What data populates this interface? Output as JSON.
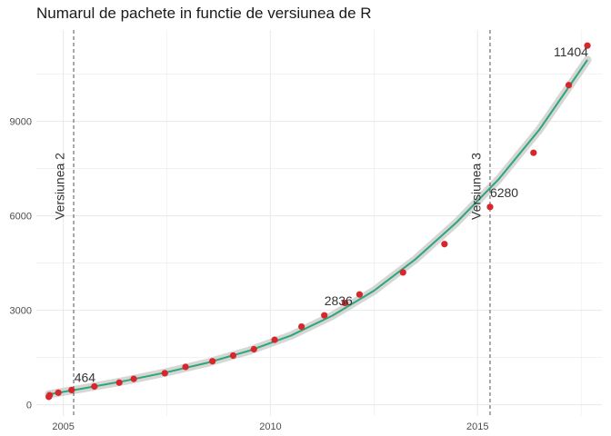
{
  "chart_data": {
    "type": "scatter",
    "title": "Numarul de pachete in functie de versiunea de R",
    "xlabel": "",
    "ylabel": "",
    "xlim": [
      2004.35,
      2018.0
    ],
    "ylim": [
      -360,
      11900
    ],
    "x_ticks": [
      2005,
      2010,
      2015
    ],
    "y_ticks": [
      0,
      3000,
      6000,
      9000
    ],
    "grid": true,
    "points": [
      {
        "x": 2004.65,
        "y": 250
      },
      {
        "x": 2004.67,
        "y": 300
      },
      {
        "x": 2004.88,
        "y": 380
      },
      {
        "x": 2005.2,
        "y": 464
      },
      {
        "x": 2005.75,
        "y": 580
      },
      {
        "x": 2006.35,
        "y": 700
      },
      {
        "x": 2006.7,
        "y": 820
      },
      {
        "x": 2007.45,
        "y": 1000
      },
      {
        "x": 2007.95,
        "y": 1200
      },
      {
        "x": 2008.6,
        "y": 1380
      },
      {
        "x": 2009.1,
        "y": 1560
      },
      {
        "x": 2009.6,
        "y": 1760
      },
      {
        "x": 2010.1,
        "y": 2060
      },
      {
        "x": 2010.75,
        "y": 2480
      },
      {
        "x": 2011.3,
        "y": 2836
      },
      {
        "x": 2011.8,
        "y": 3230
      },
      {
        "x": 2012.15,
        "y": 3500
      },
      {
        "x": 2013.2,
        "y": 4200
      },
      {
        "x": 2014.2,
        "y": 5100
      },
      {
        "x": 2015.3,
        "y": 6280
      },
      {
        "x": 2016.35,
        "y": 8000
      },
      {
        "x": 2017.2,
        "y": 10150
      },
      {
        "x": 2017.65,
        "y": 11404
      }
    ],
    "trend": {
      "x": [
        2004.65,
        2005.5,
        2006.5,
        2007.5,
        2008.5,
        2009.5,
        2010.5,
        2011.5,
        2012.5,
        2013.5,
        2014.5,
        2015.5,
        2016.5,
        2017.65
      ],
      "y": [
        330,
        520,
        760,
        1030,
        1340,
        1720,
        2200,
        2830,
        3620,
        4620,
        5800,
        7150,
        8750,
        10950
      ]
    },
    "point_labels": [
      {
        "x": 2005.2,
        "y": 464,
        "text": "464"
      },
      {
        "x": 2011.3,
        "y": 2836,
        "text": "2836"
      },
      {
        "x": 2015.3,
        "y": 6280,
        "text": "6280"
      },
      {
        "x": 2017.65,
        "y": 11404,
        "text": "11404"
      }
    ],
    "vlines": [
      {
        "x": 2005.25,
        "label": "Versiunea 2"
      },
      {
        "x": 2015.3,
        "label": "Versiunea 3"
      }
    ],
    "colors": {
      "points": "#d7262c",
      "trend": "#2aa876",
      "band": "#c8c8c8",
      "grid": "#ebebeb",
      "vline": "#555555"
    }
  }
}
